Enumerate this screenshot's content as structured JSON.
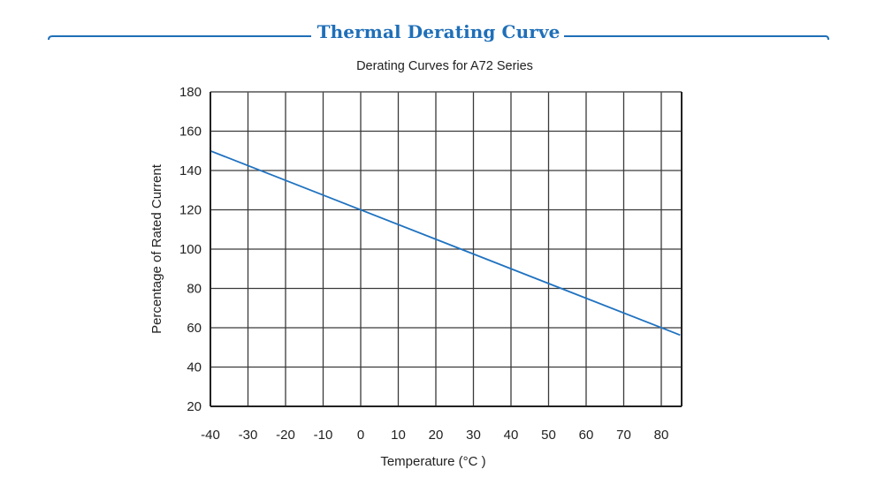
{
  "header": {
    "title": "Thermal Derating Curve",
    "accent_color": "#1f6fb8"
  },
  "chart_data": {
    "type": "line",
    "title": "Derating Curves for A72 Series",
    "xlabel": "Temperature (°C )",
    "ylabel": "Percentage of Rated Current",
    "xlim": [
      -40,
      85
    ],
    "ylim": [
      20,
      180
    ],
    "x_ticks": [
      -40,
      -30,
      -20,
      -10,
      0,
      10,
      20,
      30,
      40,
      50,
      60,
      70,
      80
    ],
    "y_ticks": [
      20,
      40,
      60,
      80,
      100,
      120,
      140,
      160,
      180
    ],
    "grid": true,
    "legend": "none",
    "series": [
      {
        "name": "A72 Series",
        "color": "#1f72c0",
        "x": [
          -40,
          85
        ],
        "y": [
          150,
          56.25
        ]
      }
    ]
  }
}
